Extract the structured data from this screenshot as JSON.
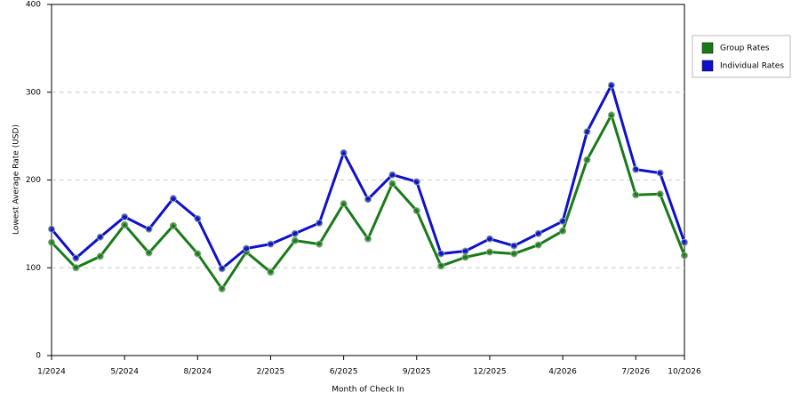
{
  "chart_data": {
    "type": "line",
    "x_label": "Month of Check In",
    "y_label": "Lowest Average Rate (USD)",
    "categories": [
      "1/2024",
      null,
      null,
      "5/2024",
      null,
      null,
      "8/2024",
      null,
      null,
      "2/2025",
      null,
      null,
      "6/2025",
      null,
      null,
      "9/2025",
      null,
      null,
      "12/2025",
      null,
      null,
      "4/2026",
      null,
      null,
      "7/2026",
      null,
      "10/2026"
    ],
    "series": [
      {
        "name": "Group Rates",
        "color": "#1a7a1a",
        "values": [
          129,
          100,
          113,
          149,
          117,
          148,
          116,
          76,
          118,
          95,
          131,
          127,
          173,
          133,
          196,
          165,
          102,
          112,
          118,
          116,
          126,
          142,
          223,
          274,
          183,
          184,
          114
        ]
      },
      {
        "name": "Individual Rates",
        "color": "#1010cc",
        "values": [
          144,
          111,
          135,
          158,
          144,
          179,
          156,
          99,
          122,
          127,
          139,
          151,
          231,
          178,
          206,
          198,
          116,
          119,
          133,
          125,
          139,
          153,
          255,
          308,
          212,
          208,
          129
        ]
      }
    ],
    "ylim": [
      0,
      400
    ],
    "yticks": [
      0,
      100,
      200,
      300,
      400
    ],
    "grid": true,
    "legend": "right"
  }
}
